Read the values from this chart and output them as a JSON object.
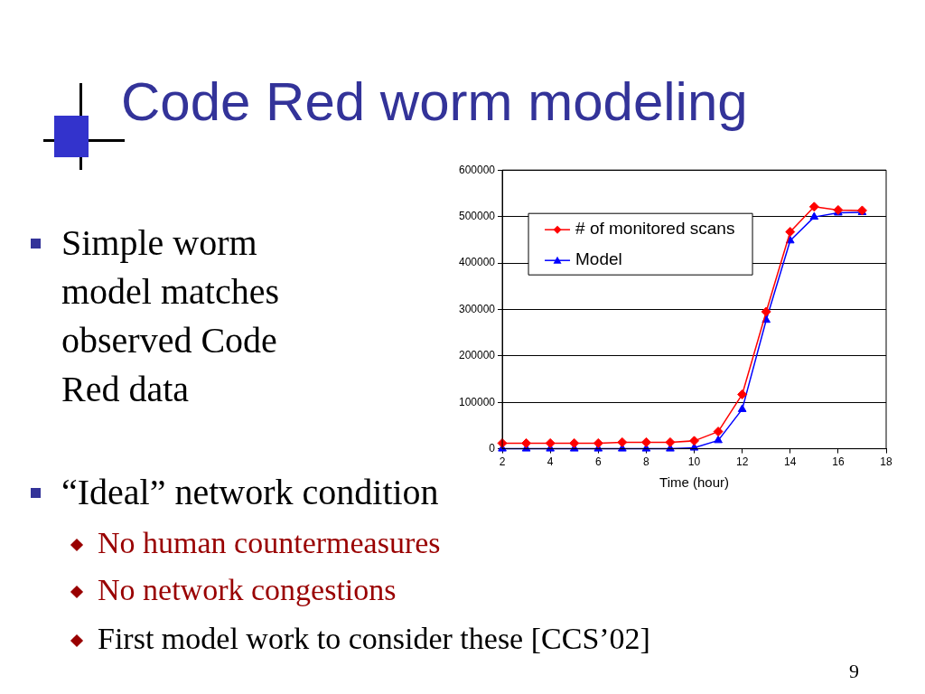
{
  "chart_data": {
    "type": "line",
    "title": "Code Red worm modeling",
    "xlabel": "Time (hour)",
    "x": [
      2,
      3,
      4,
      5,
      6,
      7,
      8,
      9,
      10,
      11,
      12,
      13,
      14,
      15,
      16,
      17
    ],
    "series": [
      {
        "name": "# of monitored scans",
        "color": "#ff0000",
        "marker": "diamond",
        "values": [
          12000,
          12000,
          12000,
          12000,
          12000,
          14000,
          14000,
          14000,
          17000,
          37000,
          117000,
          295000,
          467000,
          521000,
          514000,
          513000
        ]
      },
      {
        "name": "Model",
        "color": "#0000ff",
        "marker": "triangle",
        "values": [
          0,
          0,
          0,
          0,
          0,
          0,
          0,
          0,
          2000,
          18000,
          85000,
          277000,
          448000,
          499000,
          508000,
          509000
        ]
      }
    ],
    "xlim": [
      2,
      18
    ],
    "xticks": [
      2,
      4,
      6,
      8,
      10,
      12,
      14,
      16,
      18
    ],
    "ylim": [
      0,
      600000
    ],
    "yticks": [
      0,
      100000,
      200000,
      300000,
      400000,
      500000,
      600000
    ],
    "grid": "y",
    "legend": "top left",
    "line_style": "solid",
    "annotations": [
      "Simple worm model matches observed Code Red data",
      "“Ideal” network condition",
      "No human countermeasures",
      "No network congestions",
      "First model work to consider these [CCS’02]",
      "9"
    ]
  }
}
